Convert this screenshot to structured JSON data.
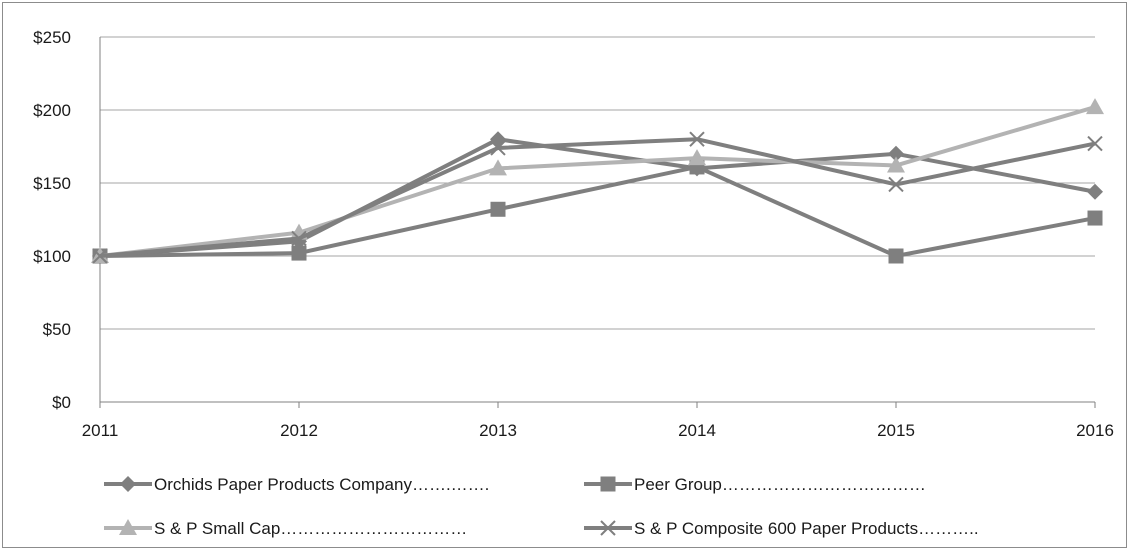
{
  "chart_data": {
    "type": "line",
    "x": [
      "2011",
      "2012",
      "2013",
      "2014",
      "2015",
      "2016"
    ],
    "ylim": [
      0,
      250
    ],
    "yticks": [
      0,
      50,
      100,
      150,
      200,
      250
    ],
    "ytick_labels": [
      "$0",
      "$50",
      "$100",
      "$150",
      "$200",
      "$250"
    ],
    "grid": true,
    "legend_position": "bottom",
    "series": [
      {
        "name": "Orchids Paper Products Company…….…….",
        "marker": "diamond",
        "color": "#7f7f7f",
        "values": [
          100,
          110,
          180,
          160,
          170,
          144
        ]
      },
      {
        "name": "Peer Group………………………………",
        "marker": "square",
        "color": "#7f7f7f",
        "values": [
          100,
          102,
          132,
          161,
          100,
          126
        ]
      },
      {
        "name": "S & P Small Cap……………………………",
        "marker": "triangle",
        "color": "#b3b3b3",
        "values": [
          100,
          116,
          160,
          167,
          162,
          202
        ]
      },
      {
        "name": "S & P Composite 600 Paper Products………..",
        "marker": "x",
        "color": "#7f7f7f",
        "values": [
          100,
          112,
          174,
          180,
          149,
          177
        ]
      }
    ]
  }
}
